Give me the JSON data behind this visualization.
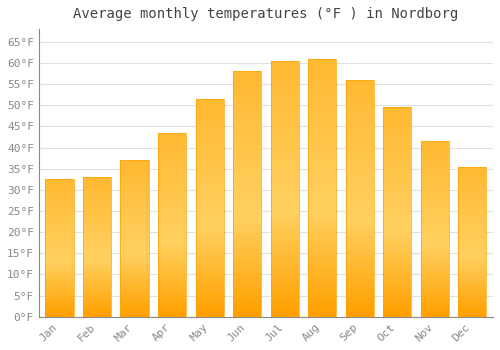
{
  "title": "Average monthly temperatures (°F ) in Nordborg",
  "months": [
    "Jan",
    "Feb",
    "Mar",
    "Apr",
    "May",
    "Jun",
    "Jul",
    "Aug",
    "Sep",
    "Oct",
    "Nov",
    "Dec"
  ],
  "values": [
    32.5,
    33.0,
    37.0,
    43.5,
    51.5,
    58.0,
    60.5,
    61.0,
    56.0,
    49.5,
    41.5,
    35.5
  ],
  "bar_color_top": "#FFC030",
  "bar_color_bottom": "#FFB020",
  "bar_color_mid": "#FFD060",
  "background_color": "#FFFFFF",
  "grid_color": "#E0E0E0",
  "text_color": "#444444",
  "tick_label_color": "#888888",
  "ylim": [
    0,
    68
  ],
  "yticks": [
    0,
    5,
    10,
    15,
    20,
    25,
    30,
    35,
    40,
    45,
    50,
    55,
    60,
    65
  ],
  "ytick_labels": [
    "0°F",
    "5°F",
    "10°F",
    "15°F",
    "20°F",
    "25°F",
    "30°F",
    "35°F",
    "40°F",
    "45°F",
    "50°F",
    "55°F",
    "60°F",
    "65°F"
  ],
  "title_fontsize": 10,
  "tick_fontsize": 8,
  "font_family": "monospace",
  "bar_width": 0.75
}
